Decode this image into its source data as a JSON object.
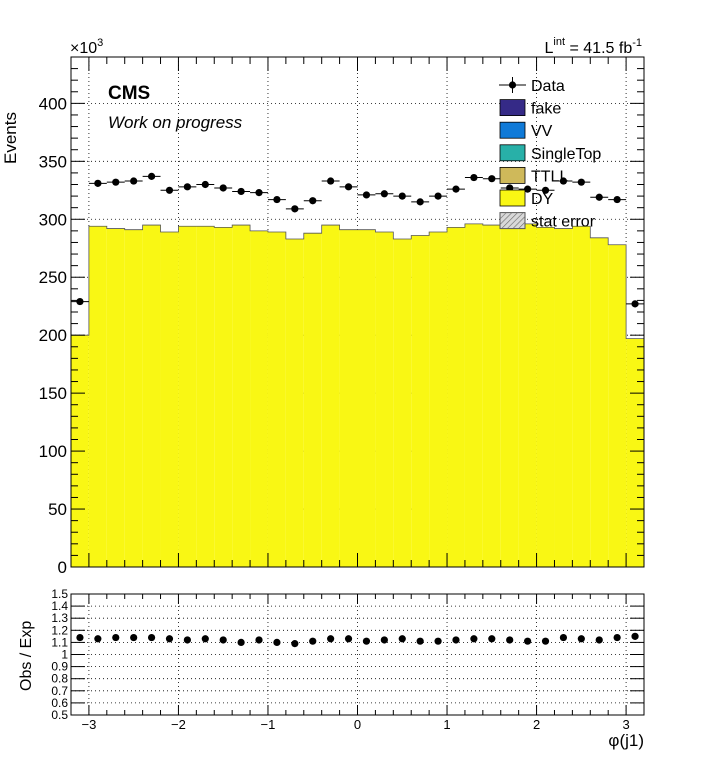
{
  "chart_data": [
    {
      "type": "bar",
      "ylabel": "Events",
      "xlabel": "φ(j1)",
      "y_multiplier_label": "×10",
      "y_multiplier_exp": "3",
      "ylim": [
        0,
        440
      ],
      "xlim": [
        -3.2,
        3.2
      ],
      "grid": true,
      "legend_placement": "top-right",
      "cms_label": "CMS",
      "work_label": "Work on progress",
      "lumi_prefix": "L",
      "lumi_sup": "int",
      "lumi_value": " = 41.5 fb",
      "lumi_exp": "-1",
      "x_ticks": [
        -3,
        -2,
        -1,
        0,
        1,
        2,
        3
      ],
      "x_tick_labels": [
        "−3",
        "−2",
        "−1",
        "0",
        "1",
        "2",
        "3"
      ],
      "y_ticks": [
        0,
        50,
        100,
        150,
        200,
        250,
        300,
        350,
        400
      ],
      "y_tick_labels": [
        "0",
        "50",
        "100",
        "150",
        "200",
        "250",
        "300",
        "350",
        "400"
      ],
      "legend": [
        {
          "name": "Data",
          "kind": "marker",
          "color": "#000000"
        },
        {
          "name": "fake",
          "kind": "box",
          "color": "#352a87"
        },
        {
          "name": "VV",
          "kind": "box",
          "color": "#0f7ad8"
        },
        {
          "name": "SingleTop",
          "kind": "box",
          "color": "#28b0a8"
        },
        {
          "name": "TTLL",
          "kind": "box",
          "color": "#cfb95a"
        },
        {
          "name": "DY",
          "kind": "box",
          "color": "#f9f714"
        },
        {
          "name": "stat error",
          "kind": "hatch",
          "color": "#888888"
        }
      ],
      "bin_edges": [
        -3.2,
        -3.0,
        -2.8,
        -2.6,
        -2.4,
        -2.2,
        -2.0,
        -1.8,
        -1.6,
        -1.4,
        -1.2,
        -1.0,
        -0.8,
        -0.6,
        -0.4,
        -0.2,
        0.0,
        0.2,
        0.4,
        0.6,
        0.8,
        1.0,
        1.2,
        1.4,
        1.6,
        1.8,
        2.0,
        2.2,
        2.4,
        2.6,
        2.8,
        3.0,
        3.2
      ],
      "series": [
        {
          "name": "DY",
          "color": "#f9f714",
          "values": [
            200,
            294,
            292,
            291,
            295,
            289,
            294,
            294,
            293,
            295,
            290,
            289,
            283,
            288,
            295,
            291,
            291,
            289,
            283,
            286,
            289,
            293,
            296,
            295,
            294,
            296,
            293,
            292,
            294,
            284,
            278,
            197
          ]
        },
        {
          "name": "Data",
          "color": "#000000",
          "values": [
            229,
            331,
            332,
            333,
            337,
            325,
            328,
            330,
            327,
            324,
            323,
            317,
            309,
            316,
            333,
            328,
            321,
            322,
            320,
            315,
            320,
            326,
            336,
            335,
            327,
            326,
            325,
            333,
            332,
            319,
            317,
            227
          ]
        }
      ]
    },
    {
      "type": "scatter",
      "ylabel": "Obs / Exp",
      "ylim": [
        0.5,
        1.5
      ],
      "xlim": [
        -3.2,
        3.2
      ],
      "grid": true,
      "y_ticks": [
        0.5,
        0.6,
        0.7,
        0.8,
        0.9,
        1.0,
        1.1,
        1.2,
        1.3,
        1.4,
        1.5
      ],
      "y_tick_labels": [
        "0.5",
        "0.6",
        "0.7",
        "0.8",
        "0.9",
        "1",
        "1.1",
        "1.2",
        "1.3",
        "1.4",
        "1.5"
      ],
      "x_ticks": [
        -3,
        -2,
        -1,
        0,
        1,
        2,
        3
      ],
      "x_tick_labels": [
        "−3",
        "−2",
        "−1",
        "0",
        "1",
        "2",
        "3"
      ],
      "x": [
        -3.1,
        -2.9,
        -2.7,
        -2.5,
        -2.3,
        -2.1,
        -1.9,
        -1.7,
        -1.5,
        -1.3,
        -1.1,
        -0.9,
        -0.7,
        -0.5,
        -0.3,
        -0.1,
        0.1,
        0.3,
        0.5,
        0.7,
        0.9,
        1.1,
        1.3,
        1.5,
        1.7,
        1.9,
        2.1,
        2.3,
        2.5,
        2.7,
        2.9,
        3.1
      ],
      "values": [
        1.14,
        1.13,
        1.14,
        1.14,
        1.14,
        1.13,
        1.12,
        1.13,
        1.12,
        1.1,
        1.12,
        1.1,
        1.09,
        1.11,
        1.13,
        1.13,
        1.11,
        1.12,
        1.13,
        1.11,
        1.11,
        1.12,
        1.13,
        1.13,
        1.12,
        1.11,
        1.11,
        1.14,
        1.13,
        1.12,
        1.14,
        1.15
      ]
    }
  ]
}
